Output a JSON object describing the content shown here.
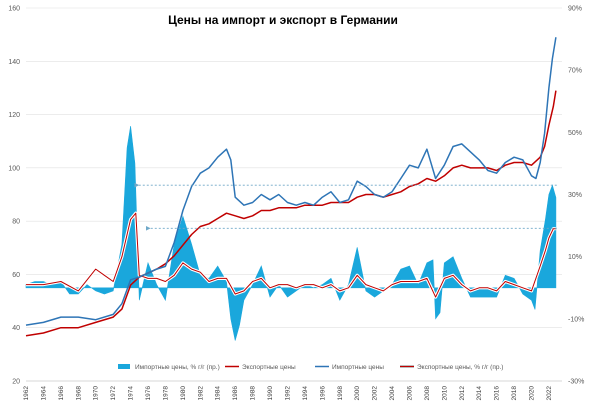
{
  "chart_data": {
    "type": "line",
    "title": "Цены на импорт и экспорт в Германии",
    "colors": {
      "import_yoy": "#1aa7dc",
      "export_prices": "#c00000",
      "import_prices": "#2e75b6",
      "export_yoy_line": "#c00000",
      "export_yoy_halo": "#ffffff",
      "grid": "#e0e0e0",
      "arrow": "#6fa8c8"
    },
    "y_left": {
      "min": 20,
      "max": 160,
      "ticks": [
        "20",
        "40",
        "60",
        "80",
        "100",
        "120",
        "140",
        "160"
      ],
      "tick_values": [
        20,
        40,
        60,
        80,
        100,
        120,
        140,
        160
      ]
    },
    "y_right": {
      "min": -30,
      "max": 90,
      "ticks": [
        "-30%",
        "-10%",
        "10%",
        "30%",
        "50%",
        "70%",
        "90%"
      ],
      "tick_values": [
        -30,
        -10,
        10,
        30,
        50,
        70,
        90
      ]
    },
    "x_range": [
      1962,
      2023.5
    ],
    "x_ticks": [
      "1962",
      "1964",
      "1966",
      "1968",
      "1970",
      "1972",
      "1974",
      "1976",
      "1978",
      "1980",
      "1982",
      "1984",
      "1986",
      "1988",
      "1990",
      "1992",
      "1994",
      "1996",
      "1998",
      "2000",
      "2002",
      "2004",
      "2006",
      "2008",
      "2010",
      "2012",
      "2014",
      "2016",
      "2018",
      "2020",
      "2022"
    ],
    "grid": "horizontal",
    "legend_position": "bottom",
    "legend": [
      {
        "key": "import_yoy",
        "label": "Импортные цены, % г/г (пр.)",
        "kind": "area"
      },
      {
        "key": "export_prices",
        "label": "Экспортные цены",
        "kind": "line"
      },
      {
        "key": "import_prices",
        "label": "Импортные цены",
        "kind": "line"
      },
      {
        "key": "export_yoy",
        "label": "Экспортные цены, % г/г (пр.)",
        "kind": "halo-line"
      }
    ],
    "annotations": [
      {
        "type": "dashed-arrow",
        "y_axis": "left",
        "y": 93.5,
        "from_x": 2022.9,
        "to_x": 1974.9
      },
      {
        "type": "dashed-arrow",
        "y_axis": "left",
        "y": 77.3,
        "from_x": 2022.9,
        "to_x": 1976.2
      }
    ],
    "series": [
      {
        "name": "Импортные цены",
        "key": "import_prices",
        "axis": "left",
        "points": [
          [
            1962,
            41
          ],
          [
            1964,
            42
          ],
          [
            1966,
            44
          ],
          [
            1968,
            44
          ],
          [
            1970,
            43
          ],
          [
            1972,
            45
          ],
          [
            1973,
            49
          ],
          [
            1974,
            58
          ],
          [
            1975,
            59
          ],
          [
            1977,
            62
          ],
          [
            1978,
            63
          ],
          [
            1979,
            72
          ],
          [
            1980,
            84
          ],
          [
            1981,
            93
          ],
          [
            1982,
            98
          ],
          [
            1983,
            100
          ],
          [
            1984,
            104
          ],
          [
            1985,
            107
          ],
          [
            1985.5,
            103
          ],
          [
            1986,
            89
          ],
          [
            1987,
            86
          ],
          [
            1988,
            87
          ],
          [
            1989,
            90
          ],
          [
            1990,
            88
          ],
          [
            1991,
            90
          ],
          [
            1992,
            87
          ],
          [
            1993,
            86
          ],
          [
            1994,
            87
          ],
          [
            1995,
            86
          ],
          [
            1996,
            89
          ],
          [
            1997,
            91
          ],
          [
            1998,
            87
          ],
          [
            1999,
            88
          ],
          [
            2000,
            95
          ],
          [
            2001,
            93
          ],
          [
            2002,
            90
          ],
          [
            2003,
            89
          ],
          [
            2004,
            91
          ],
          [
            2005,
            96
          ],
          [
            2006,
            101
          ],
          [
            2007,
            100
          ],
          [
            2008,
            107
          ],
          [
            2009,
            96
          ],
          [
            2010,
            101
          ],
          [
            2011,
            108
          ],
          [
            2012,
            109
          ],
          [
            2013,
            106
          ],
          [
            2014,
            103
          ],
          [
            2015,
            99
          ],
          [
            2016,
            98
          ],
          [
            2017,
            102
          ],
          [
            2018,
            104
          ],
          [
            2019,
            103
          ],
          [
            2020,
            97
          ],
          [
            2020.5,
            96
          ],
          [
            2021,
            102
          ],
          [
            2021.5,
            113
          ],
          [
            2022,
            130
          ],
          [
            2022.4,
            141
          ],
          [
            2022.8,
            149
          ]
        ]
      },
      {
        "name": "Экспортные цены",
        "key": "export_prices",
        "axis": "left",
        "points": [
          [
            1962,
            37
          ],
          [
            1964,
            38
          ],
          [
            1966,
            40
          ],
          [
            1968,
            40
          ],
          [
            1970,
            42
          ],
          [
            1972,
            44
          ],
          [
            1973,
            47
          ],
          [
            1974,
            56
          ],
          [
            1975,
            59
          ],
          [
            1977,
            62
          ],
          [
            1978,
            64
          ],
          [
            1979,
            67
          ],
          [
            1980,
            71
          ],
          [
            1981,
            75
          ],
          [
            1982,
            78
          ],
          [
            1983,
            79
          ],
          [
            1984,
            81
          ],
          [
            1985,
            83
          ],
          [
            1986,
            82
          ],
          [
            1987,
            81
          ],
          [
            1988,
            82
          ],
          [
            1989,
            84
          ],
          [
            1990,
            84
          ],
          [
            1991,
            85
          ],
          [
            1992,
            85
          ],
          [
            1993,
            85
          ],
          [
            1994,
            86
          ],
          [
            1995,
            86
          ],
          [
            1996,
            86
          ],
          [
            1997,
            87
          ],
          [
            1998,
            87
          ],
          [
            1999,
            87
          ],
          [
            2000,
            89
          ],
          [
            2001,
            90
          ],
          [
            2002,
            90
          ],
          [
            2003,
            89
          ],
          [
            2004,
            90
          ],
          [
            2005,
            91
          ],
          [
            2006,
            93
          ],
          [
            2007,
            94
          ],
          [
            2008,
            96
          ],
          [
            2009,
            95
          ],
          [
            2010,
            97
          ],
          [
            2011,
            100
          ],
          [
            2012,
            101
          ],
          [
            2013,
            100
          ],
          [
            2014,
            100
          ],
          [
            2015,
            100
          ],
          [
            2016,
            99
          ],
          [
            2017,
            101
          ],
          [
            2018,
            102
          ],
          [
            2019,
            102
          ],
          [
            2020,
            101
          ],
          [
            2021,
            104
          ],
          [
            2021.5,
            108
          ],
          [
            2022,
            116
          ],
          [
            2022.5,
            123
          ],
          [
            2022.8,
            129
          ]
        ]
      },
      {
        "name": "Импортные цены, % г/г (пр.)",
        "key": "import_yoy",
        "axis": "right",
        "points": [
          [
            1962,
            1
          ],
          [
            1963,
            2
          ],
          [
            1964,
            2
          ],
          [
            1965,
            1
          ],
          [
            1966,
            2
          ],
          [
            1967,
            -2
          ],
          [
            1968,
            -2
          ],
          [
            1969,
            1
          ],
          [
            1970,
            -1
          ],
          [
            1971,
            -2
          ],
          [
            1972,
            -1
          ],
          [
            1973,
            14
          ],
          [
            1973.6,
            45
          ],
          [
            1974,
            52
          ],
          [
            1974.5,
            40
          ],
          [
            1975,
            -4
          ],
          [
            1976,
            8
          ],
          [
            1977,
            1
          ],
          [
            1978,
            -4
          ],
          [
            1979,
            14
          ],
          [
            1980,
            23
          ],
          [
            1981,
            14
          ],
          [
            1982,
            4
          ],
          [
            1983,
            3
          ],
          [
            1984,
            7
          ],
          [
            1985,
            2
          ],
          [
            1985.5,
            -10
          ],
          [
            1986,
            -17
          ],
          [
            1986.5,
            -12
          ],
          [
            1987,
            -4
          ],
          [
            1988,
            1
          ],
          [
            1989,
            7
          ],
          [
            1990,
            -3
          ],
          [
            1991,
            1
          ],
          [
            1992,
            -3
          ],
          [
            1993,
            -1
          ],
          [
            1994,
            1
          ],
          [
            1995,
            0
          ],
          [
            1996,
            1
          ],
          [
            1997,
            3
          ],
          [
            1998,
            -4
          ],
          [
            1999,
            1
          ],
          [
            2000,
            13
          ],
          [
            2001,
            -1
          ],
          [
            2002,
            -3
          ],
          [
            2003,
            -1
          ],
          [
            2004,
            1
          ],
          [
            2005,
            6
          ],
          [
            2006,
            7
          ],
          [
            2007,
            1
          ],
          [
            2008,
            8
          ],
          [
            2008.7,
            9
          ],
          [
            2009,
            -10
          ],
          [
            2009.5,
            -8
          ],
          [
            2010,
            8
          ],
          [
            2011,
            10
          ],
          [
            2012,
            3
          ],
          [
            2013,
            -3
          ],
          [
            2014,
            -3
          ],
          [
            2015,
            -3
          ],
          [
            2016,
            -3
          ],
          [
            2017,
            4
          ],
          [
            2018,
            3
          ],
          [
            2019,
            -2
          ],
          [
            2020,
            -4
          ],
          [
            2020.4,
            -7
          ],
          [
            2021,
            12
          ],
          [
            2021.6,
            22
          ],
          [
            2022,
            30
          ],
          [
            2022.4,
            33
          ],
          [
            2022.8,
            29
          ]
        ]
      },
      {
        "name": "Экспортные цены, % г/г (пр.)",
        "key": "export_yoy",
        "axis": "right",
        "points": [
          [
            1962,
            1
          ],
          [
            1964,
            1
          ],
          [
            1966,
            2
          ],
          [
            1968,
            -1
          ],
          [
            1970,
            6
          ],
          [
            1971,
            4
          ],
          [
            1972,
            2
          ],
          [
            1973,
            10
          ],
          [
            1974,
            22
          ],
          [
            1974.6,
            24
          ],
          [
            1975,
            4
          ],
          [
            1976,
            3
          ],
          [
            1977,
            3
          ],
          [
            1978,
            2
          ],
          [
            1979,
            4
          ],
          [
            1980,
            8
          ],
          [
            1981,
            6
          ],
          [
            1982,
            5
          ],
          [
            1983,
            2
          ],
          [
            1984,
            3
          ],
          [
            1985,
            3
          ],
          [
            1986,
            -2
          ],
          [
            1987,
            -1
          ],
          [
            1988,
            2
          ],
          [
            1989,
            3
          ],
          [
            1990,
            0
          ],
          [
            1991,
            1
          ],
          [
            1992,
            1
          ],
          [
            1993,
            0
          ],
          [
            1994,
            1
          ],
          [
            1995,
            1
          ],
          [
            1996,
            0
          ],
          [
            1997,
            1
          ],
          [
            1998,
            -1
          ],
          [
            1999,
            0
          ],
          [
            2000,
            4
          ],
          [
            2001,
            1
          ],
          [
            2002,
            0
          ],
          [
            2003,
            -1
          ],
          [
            2004,
            1
          ],
          [
            2005,
            2
          ],
          [
            2006,
            2
          ],
          [
            2007,
            2
          ],
          [
            2008,
            3
          ],
          [
            2009,
            -3
          ],
          [
            2010,
            3
          ],
          [
            2011,
            4
          ],
          [
            2012,
            1
          ],
          [
            2013,
            -1
          ],
          [
            2014,
            0
          ],
          [
            2015,
            0
          ],
          [
            2016,
            -1
          ],
          [
            2017,
            2
          ],
          [
            2018,
            1
          ],
          [
            2019,
            0
          ],
          [
            2020,
            -1
          ],
          [
            2021,
            7
          ],
          [
            2021.6,
            12
          ],
          [
            2022,
            16
          ],
          [
            2022.5,
            19
          ],
          [
            2022.8,
            19
          ]
        ]
      }
    ]
  }
}
